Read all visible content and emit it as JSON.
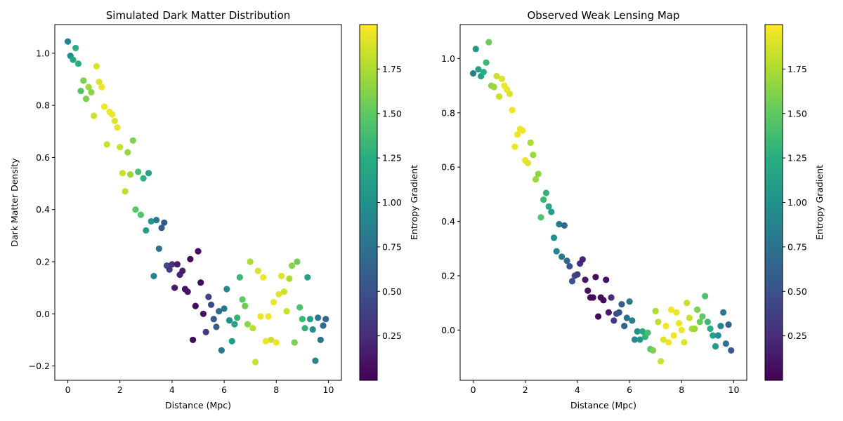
{
  "chart_data": [
    {
      "type": "scatter",
      "title": "Simulated Dark Matter Distribution",
      "xlabel": "Distance (Mpc)",
      "ylabel": "Dark Matter Density",
      "xlim": [
        -0.5,
        10.5
      ],
      "ylim": [
        -0.255,
        1.11
      ],
      "xticks": [
        0,
        2,
        4,
        6,
        8,
        10
      ],
      "yticks": [
        -0.2,
        0.0,
        0.2,
        0.4,
        0.6,
        0.8,
        1.0
      ],
      "grid": false,
      "colormap": "viridis",
      "colorbar": {
        "label": "Entropy Gradient",
        "range": [
          0.0,
          2.0
        ],
        "ticks": [
          0.25,
          0.5,
          0.75,
          1.0,
          1.25,
          1.5,
          1.75
        ]
      },
      "points": [
        {
          "x": 0.0,
          "y": 1.045,
          "c": 0.9
        },
        {
          "x": 0.1,
          "y": 0.99,
          "c": 1.0
        },
        {
          "x": 0.2,
          "y": 0.975,
          "c": 1.2
        },
        {
          "x": 0.3,
          "y": 1.02,
          "c": 1.25
        },
        {
          "x": 0.4,
          "y": 0.96,
          "c": 1.25
        },
        {
          "x": 0.5,
          "y": 0.855,
          "c": 1.45
        },
        {
          "x": 0.6,
          "y": 0.895,
          "c": 1.6
        },
        {
          "x": 0.7,
          "y": 0.825,
          "c": 1.6
        },
        {
          "x": 0.8,
          "y": 0.87,
          "c": 1.7
        },
        {
          "x": 0.9,
          "y": 0.85,
          "c": 1.65
        },
        {
          "x": 1.0,
          "y": 0.76,
          "c": 1.85
        },
        {
          "x": 1.1,
          "y": 0.95,
          "c": 1.9
        },
        {
          "x": 1.2,
          "y": 0.89,
          "c": 1.9
        },
        {
          "x": 1.3,
          "y": 0.87,
          "c": 1.95
        },
        {
          "x": 1.4,
          "y": 0.795,
          "c": 1.95
        },
        {
          "x": 1.5,
          "y": 0.65,
          "c": 1.85
        },
        {
          "x": 1.6,
          "y": 0.775,
          "c": 1.95
        },
        {
          "x": 1.7,
          "y": 0.765,
          "c": 1.95
        },
        {
          "x": 1.8,
          "y": 0.74,
          "c": 1.9
        },
        {
          "x": 1.9,
          "y": 0.715,
          "c": 1.95
        },
        {
          "x": 2.0,
          "y": 0.64,
          "c": 1.85
        },
        {
          "x": 2.1,
          "y": 0.54,
          "c": 1.85
        },
        {
          "x": 2.2,
          "y": 0.47,
          "c": 1.8
        },
        {
          "x": 2.3,
          "y": 0.62,
          "c": 1.7
        },
        {
          "x": 2.4,
          "y": 0.535,
          "c": 1.7
        },
        {
          "x": 2.5,
          "y": 0.665,
          "c": 1.6
        },
        {
          "x": 2.6,
          "y": 0.4,
          "c": 1.5
        },
        {
          "x": 2.7,
          "y": 0.545,
          "c": 1.4
        },
        {
          "x": 2.8,
          "y": 0.38,
          "c": 1.45
        },
        {
          "x": 2.9,
          "y": 0.52,
          "c": 1.3
        },
        {
          "x": 3.0,
          "y": 0.32,
          "c": 1.1
        },
        {
          "x": 3.1,
          "y": 0.54,
          "c": 1.15
        },
        {
          "x": 3.2,
          "y": 0.355,
          "c": 1.05
        },
        {
          "x": 3.3,
          "y": 0.145,
          "c": 0.9
        },
        {
          "x": 3.4,
          "y": 0.36,
          "c": 0.8
        },
        {
          "x": 3.5,
          "y": 0.25,
          "c": 0.75
        },
        {
          "x": 3.6,
          "y": 0.33,
          "c": 0.6
        },
        {
          "x": 3.7,
          "y": 0.35,
          "c": 0.55
        },
        {
          "x": 3.8,
          "y": 0.185,
          "c": 0.45
        },
        {
          "x": 3.9,
          "y": 0.17,
          "c": 0.35
        },
        {
          "x": 4.0,
          "y": 0.19,
          "c": 0.3
        },
        {
          "x": 4.1,
          "y": 0.1,
          "c": 0.15
        },
        {
          "x": 4.2,
          "y": 0.19,
          "c": 0.15
        },
        {
          "x": 4.3,
          "y": 0.15,
          "c": 0.2
        },
        {
          "x": 4.4,
          "y": 0.165,
          "c": 0.15
        },
        {
          "x": 4.5,
          "y": 0.095,
          "c": 0.1
        },
        {
          "x": 4.6,
          "y": 0.085,
          "c": 0.1
        },
        {
          "x": 4.7,
          "y": 0.21,
          "c": 0.05
        },
        {
          "x": 4.8,
          "y": -0.1,
          "c": 0.05
        },
        {
          "x": 4.9,
          "y": 0.03,
          "c": 0.05
        },
        {
          "x": 5.0,
          "y": 0.24,
          "c": 0.05
        },
        {
          "x": 5.1,
          "y": 0.12,
          "c": 0.05
        },
        {
          "x": 5.2,
          "y": 0.0,
          "c": 0.1
        },
        {
          "x": 5.3,
          "y": -0.07,
          "c": 0.35
        },
        {
          "x": 5.4,
          "y": 0.065,
          "c": 0.4
        },
        {
          "x": 5.5,
          "y": 0.035,
          "c": 0.45
        },
        {
          "x": 5.6,
          "y": -0.02,
          "c": 0.55
        },
        {
          "x": 5.7,
          "y": -0.05,
          "c": 0.6
        },
        {
          "x": 5.8,
          "y": 0.01,
          "c": 0.7
        },
        {
          "x": 5.9,
          "y": -0.14,
          "c": 0.8
        },
        {
          "x": 6.0,
          "y": 0.02,
          "c": 0.8
        },
        {
          "x": 6.1,
          "y": 0.095,
          "c": 0.95
        },
        {
          "x": 6.2,
          "y": -0.025,
          "c": 1.0
        },
        {
          "x": 6.3,
          "y": -0.105,
          "c": 1.1
        },
        {
          "x": 6.4,
          "y": -0.04,
          "c": 1.15
        },
        {
          "x": 6.5,
          "y": -0.015,
          "c": 1.3
        },
        {
          "x": 6.6,
          "y": 0.14,
          "c": 1.35
        },
        {
          "x": 6.7,
          "y": 0.055,
          "c": 1.5
        },
        {
          "x": 6.8,
          "y": 0.03,
          "c": 1.55
        },
        {
          "x": 6.9,
          "y": -0.04,
          "c": 1.65
        },
        {
          "x": 7.0,
          "y": 0.2,
          "c": 1.75
        },
        {
          "x": 7.1,
          "y": -0.055,
          "c": 1.8
        },
        {
          "x": 7.2,
          "y": -0.185,
          "c": 1.85
        },
        {
          "x": 7.3,
          "y": 0.165,
          "c": 1.9
        },
        {
          "x": 7.4,
          "y": -0.01,
          "c": 1.95
        },
        {
          "x": 7.5,
          "y": 0.14,
          "c": 1.95
        },
        {
          "x": 7.6,
          "y": -0.105,
          "c": 1.95
        },
        {
          "x": 7.7,
          "y": -0.01,
          "c": 1.95
        },
        {
          "x": 7.8,
          "y": -0.1,
          "c": 1.85
        },
        {
          "x": 7.9,
          "y": 0.045,
          "c": 1.95
        },
        {
          "x": 8.0,
          "y": -0.11,
          "c": 1.95
        },
        {
          "x": 8.1,
          "y": 0.075,
          "c": 1.9
        },
        {
          "x": 8.2,
          "y": 0.145,
          "c": 1.9
        },
        {
          "x": 8.3,
          "y": 0.085,
          "c": 1.85
        },
        {
          "x": 8.4,
          "y": 0.01,
          "c": 1.85
        },
        {
          "x": 8.5,
          "y": 0.135,
          "c": 1.75
        },
        {
          "x": 8.6,
          "y": 0.185,
          "c": 1.65
        },
        {
          "x": 8.7,
          "y": -0.11,
          "c": 1.6
        },
        {
          "x": 8.8,
          "y": 0.2,
          "c": 1.55
        },
        {
          "x": 8.9,
          "y": 0.025,
          "c": 1.45
        },
        {
          "x": 9.0,
          "y": -0.02,
          "c": 1.35
        },
        {
          "x": 9.1,
          "y": -0.055,
          "c": 1.3
        },
        {
          "x": 9.2,
          "y": 0.14,
          "c": 1.15
        },
        {
          "x": 9.3,
          "y": -0.02,
          "c": 1.1
        },
        {
          "x": 9.4,
          "y": -0.06,
          "c": 1.0
        },
        {
          "x": 9.5,
          "y": -0.18,
          "c": 0.9
        },
        {
          "x": 9.6,
          "y": -0.015,
          "c": 0.8
        },
        {
          "x": 9.7,
          "y": -0.1,
          "c": 0.75
        },
        {
          "x": 9.8,
          "y": -0.045,
          "c": 0.7
        },
        {
          "x": 9.9,
          "y": -0.02,
          "c": 0.65
        }
      ]
    },
    {
      "type": "scatter",
      "title": "Observed Weak Lensing Map",
      "xlabel": "Distance (Mpc)",
      "ylabel": "",
      "xlim": [
        -0.5,
        10.5
      ],
      "ylim": [
        -0.185,
        1.125
      ],
      "xticks": [
        0,
        2,
        4,
        6,
        8,
        10
      ],
      "yticks": [
        0.0,
        0.2,
        0.4,
        0.6,
        0.8,
        1.0
      ],
      "grid": false,
      "colormap": "viridis",
      "colorbar": {
        "label": "Entropy Gradient",
        "range": [
          0.0,
          2.0
        ],
        "ticks": [
          0.25,
          0.5,
          0.75,
          1.0,
          1.25,
          1.5,
          1.75
        ]
      },
      "points": [
        {
          "x": 0.0,
          "y": 0.945,
          "c": 0.85
        },
        {
          "x": 0.1,
          "y": 1.035,
          "c": 1.05
        },
        {
          "x": 0.2,
          "y": 0.96,
          "c": 1.15
        },
        {
          "x": 0.3,
          "y": 0.935,
          "c": 1.15
        },
        {
          "x": 0.4,
          "y": 0.95,
          "c": 1.25
        },
        {
          "x": 0.5,
          "y": 0.985,
          "c": 1.35
        },
        {
          "x": 0.6,
          "y": 1.06,
          "c": 1.55
        },
        {
          "x": 0.7,
          "y": 0.9,
          "c": 1.65
        },
        {
          "x": 0.8,
          "y": 0.895,
          "c": 1.7
        },
        {
          "x": 0.9,
          "y": 0.935,
          "c": 1.85
        },
        {
          "x": 1.0,
          "y": 0.86,
          "c": 1.85
        },
        {
          "x": 1.1,
          "y": 0.925,
          "c": 1.9
        },
        {
          "x": 1.2,
          "y": 0.9,
          "c": 1.95
        },
        {
          "x": 1.3,
          "y": 0.885,
          "c": 1.95
        },
        {
          "x": 1.4,
          "y": 0.87,
          "c": 1.9
        },
        {
          "x": 1.5,
          "y": 0.81,
          "c": 1.95
        },
        {
          "x": 1.6,
          "y": 0.675,
          "c": 1.95
        },
        {
          "x": 1.7,
          "y": 0.72,
          "c": 1.95
        },
        {
          "x": 1.8,
          "y": 0.74,
          "c": 1.95
        },
        {
          "x": 1.9,
          "y": 0.735,
          "c": 1.95
        },
        {
          "x": 2.0,
          "y": 0.625,
          "c": 1.95
        },
        {
          "x": 2.1,
          "y": 0.615,
          "c": 1.9
        },
        {
          "x": 2.2,
          "y": 0.69,
          "c": 1.75
        },
        {
          "x": 2.3,
          "y": 0.645,
          "c": 1.7
        },
        {
          "x": 2.4,
          "y": 0.555,
          "c": 1.7
        },
        {
          "x": 2.5,
          "y": 0.575,
          "c": 1.65
        },
        {
          "x": 2.6,
          "y": 0.415,
          "c": 1.45
        },
        {
          "x": 2.7,
          "y": 0.48,
          "c": 1.35
        },
        {
          "x": 2.8,
          "y": 0.505,
          "c": 1.3
        },
        {
          "x": 2.9,
          "y": 0.455,
          "c": 1.2
        },
        {
          "x": 3.0,
          "y": 0.435,
          "c": 1.1
        },
        {
          "x": 3.1,
          "y": 0.34,
          "c": 1.0
        },
        {
          "x": 3.2,
          "y": 0.29,
          "c": 0.9
        },
        {
          "x": 3.3,
          "y": 0.39,
          "c": 0.8
        },
        {
          "x": 3.4,
          "y": 0.27,
          "c": 0.8
        },
        {
          "x": 3.5,
          "y": 0.385,
          "c": 0.7
        },
        {
          "x": 3.6,
          "y": 0.255,
          "c": 0.65
        },
        {
          "x": 3.7,
          "y": 0.235,
          "c": 0.55
        },
        {
          "x": 3.8,
          "y": 0.18,
          "c": 0.5
        },
        {
          "x": 3.9,
          "y": 0.2,
          "c": 0.45
        },
        {
          "x": 4.0,
          "y": 0.205,
          "c": 0.35
        },
        {
          "x": 4.1,
          "y": 0.245,
          "c": 0.25
        },
        {
          "x": 4.2,
          "y": 0.26,
          "c": 0.2
        },
        {
          "x": 4.3,
          "y": 0.185,
          "c": 0.15
        },
        {
          "x": 4.4,
          "y": 0.145,
          "c": 0.1
        },
        {
          "x": 4.5,
          "y": 0.12,
          "c": 0.05
        },
        {
          "x": 4.6,
          "y": 0.12,
          "c": 0.05
        },
        {
          "x": 4.7,
          "y": 0.195,
          "c": 0.05
        },
        {
          "x": 4.8,
          "y": 0.05,
          "c": 0.05
        },
        {
          "x": 4.9,
          "y": 0.12,
          "c": 0.05
        },
        {
          "x": 5.0,
          "y": 0.11,
          "c": 0.05
        },
        {
          "x": 5.1,
          "y": 0.185,
          "c": 0.1
        },
        {
          "x": 5.2,
          "y": 0.065,
          "c": 0.15
        },
        {
          "x": 5.3,
          "y": 0.12,
          "c": 0.25
        },
        {
          "x": 5.4,
          "y": 0.035,
          "c": 0.35
        },
        {
          "x": 5.5,
          "y": 0.06,
          "c": 0.45
        },
        {
          "x": 5.6,
          "y": 0.065,
          "c": 0.5
        },
        {
          "x": 5.7,
          "y": 0.095,
          "c": 0.6
        },
        {
          "x": 5.8,
          "y": 0.015,
          "c": 0.65
        },
        {
          "x": 5.9,
          "y": 0.045,
          "c": 0.75
        },
        {
          "x": 6.0,
          "y": 0.105,
          "c": 0.8
        },
        {
          "x": 6.1,
          "y": 0.035,
          "c": 0.85
        },
        {
          "x": 6.2,
          "y": -0.035,
          "c": 0.95
        },
        {
          "x": 6.3,
          "y": -0.005,
          "c": 1.0
        },
        {
          "x": 6.4,
          "y": -0.035,
          "c": 1.05
        },
        {
          "x": 6.5,
          "y": -0.005,
          "c": 1.2
        },
        {
          "x": 6.6,
          "y": -0.025,
          "c": 1.3
        },
        {
          "x": 6.7,
          "y": -0.01,
          "c": 1.4
        },
        {
          "x": 6.8,
          "y": -0.07,
          "c": 1.5
        },
        {
          "x": 6.9,
          "y": -0.075,
          "c": 1.6
        },
        {
          "x": 7.0,
          "y": 0.07,
          "c": 1.75
        },
        {
          "x": 7.1,
          "y": 0.03,
          "c": 1.8
        },
        {
          "x": 7.2,
          "y": -0.115,
          "c": 1.85
        },
        {
          "x": 7.3,
          "y": -0.035,
          "c": 1.9
        },
        {
          "x": 7.4,
          "y": 0.015,
          "c": 1.95
        },
        {
          "x": 7.5,
          "y": -0.045,
          "c": 1.95
        },
        {
          "x": 7.6,
          "y": 0.075,
          "c": 1.95
        },
        {
          "x": 7.7,
          "y": -0.02,
          "c": 1.95
        },
        {
          "x": 7.8,
          "y": 0.065,
          "c": 1.95
        },
        {
          "x": 7.9,
          "y": 0.025,
          "c": 1.95
        },
        {
          "x": 8.0,
          "y": 0.0,
          "c": 1.95
        },
        {
          "x": 8.1,
          "y": -0.045,
          "c": 1.9
        },
        {
          "x": 8.2,
          "y": 0.1,
          "c": 1.85
        },
        {
          "x": 8.3,
          "y": 0.045,
          "c": 1.85
        },
        {
          "x": 8.4,
          "y": 0.005,
          "c": 1.75
        },
        {
          "x": 8.5,
          "y": 0.005,
          "c": 1.7
        },
        {
          "x": 8.6,
          "y": 0.075,
          "c": 1.6
        },
        {
          "x": 8.7,
          "y": 0.03,
          "c": 1.55
        },
        {
          "x": 8.8,
          "y": 0.05,
          "c": 1.5
        },
        {
          "x": 8.9,
          "y": 0.125,
          "c": 1.45
        },
        {
          "x": 9.0,
          "y": 0.03,
          "c": 1.35
        },
        {
          "x": 9.1,
          "y": 0.005,
          "c": 1.25
        },
        {
          "x": 9.2,
          "y": -0.02,
          "c": 1.15
        },
        {
          "x": 9.3,
          "y": -0.06,
          "c": 1.1
        },
        {
          "x": 9.4,
          "y": -0.02,
          "c": 1.0
        },
        {
          "x": 9.5,
          "y": 0.015,
          "c": 0.9
        },
        {
          "x": 9.6,
          "y": 0.065,
          "c": 0.8
        },
        {
          "x": 9.7,
          "y": -0.05,
          "c": 0.75
        },
        {
          "x": 9.8,
          "y": 0.02,
          "c": 0.65
        },
        {
          "x": 9.9,
          "y": -0.075,
          "c": 0.55
        }
      ]
    }
  ]
}
